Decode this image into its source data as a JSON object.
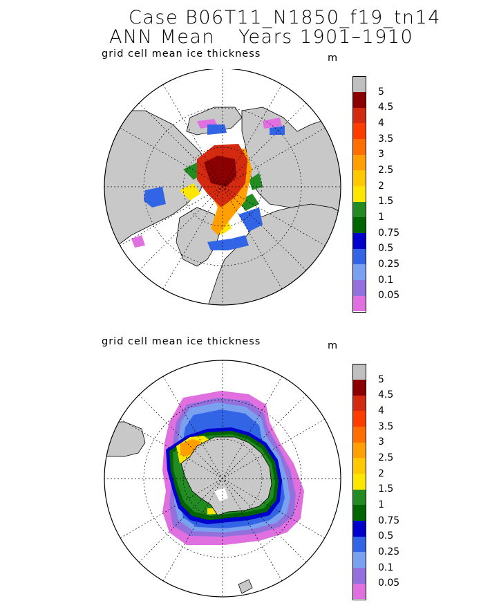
{
  "title": {
    "line1": "Case B06T11_N1850_f19_tn14",
    "line2_left": "ANN Mean",
    "line2_right": "Years 1901–1910"
  },
  "panels": [
    {
      "name": "north",
      "label": "grid cell mean ice thickness",
      "unit": "m",
      "hemisphere": "Arctic"
    },
    {
      "name": "south",
      "label": "grid cell mean ice thickness",
      "unit": "m",
      "hemisphere": "Antarctic"
    }
  ],
  "legend": {
    "levels": [
      "5",
      "4.5",
      "4",
      "3.5",
      "3",
      "2.5",
      "2",
      "1.5",
      "1",
      "0.75",
      "0.5",
      "0.25",
      "0.1",
      "0.05"
    ],
    "colors": [
      "#c0c0c0",
      "#8b0000",
      "#d42a10",
      "#ff3c00",
      "#ff6e00",
      "#ffa000",
      "#ffc800",
      "#ffe600",
      "#228b22",
      "#006400",
      "#0000cd",
      "#3264e6",
      "#7aa0f0",
      "#9370db",
      "#e070e0"
    ]
  },
  "colors": {
    "land": "#c8c8c8",
    "ocean": "#ffffff",
    "outline": "#000000"
  }
}
